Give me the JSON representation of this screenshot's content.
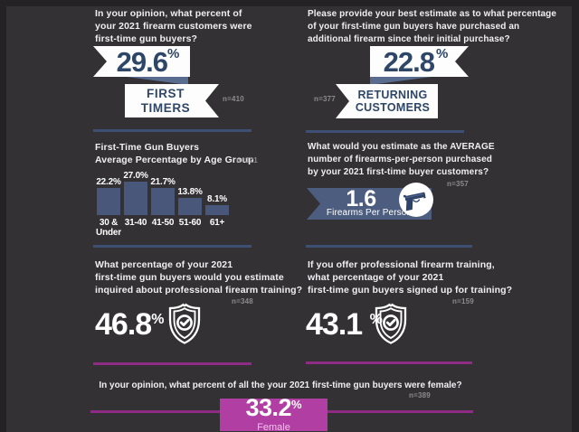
{
  "colors": {
    "background": "#333134",
    "frame": "#242225",
    "navy_text": "#2e4668",
    "steel_blue": "#4d5d7f",
    "bar_blue": "#49587a",
    "divider_navy": "#3d4f72",
    "magenta_box": "#b13ea3",
    "magenta_line": "#8e2b84",
    "sample_gray": "#8c8c8c"
  },
  "sections": {
    "first_timers": {
      "question_lines": [
        "In your opinion, what percent of",
        "your 2021 firearm customers were",
        "first-time gun buyers?"
      ],
      "value": "29.6",
      "unit": "%",
      "label_line1": "FIRST",
      "label_line2": "TIMERS",
      "n": "n=410"
    },
    "returning_customers": {
      "question_lines": [
        "Please provide your best estimate as to what percentage",
        "of your first-time gun buyers have purchased an",
        "additional firearm since their initial purchase?"
      ],
      "value": "22.8",
      "unit": "%",
      "label_line1": "RETURNING",
      "label_line2": "CUSTOMERS",
      "n": "n=377"
    },
    "age_chart": {
      "title_line1": "First-Time Gun Buyers",
      "title_line2": "Average Percentage by Age Group",
      "n": "n=321"
    },
    "firearms_per_person": {
      "question_lines": [
        "What would you estimate as the AVERAGE",
        "number of firearms-per-person purchased",
        "by your 2021 first-time buyer customers?"
      ],
      "value": "1.6",
      "caption": "Firearms Per Person",
      "n": "n=357",
      "icon": "pistol-icon"
    },
    "training_inquired": {
      "question_lines": [
        "What percentage of your 2021",
        "first-time gun buyers would you estimate",
        "inquired about professional firearm training?"
      ],
      "value": "46.8",
      "unit": "%",
      "n": "n=348",
      "icon": "shield-check-icon"
    },
    "training_signed": {
      "question_lines": [
        "If you offer professional firearm training,",
        "what percentage of your 2021",
        "first-time gun buyers signed up for training?"
      ],
      "value": "43.1",
      "unit": "%",
      "n": "n=159",
      "icon": "shield-check-icon"
    },
    "female_buyers": {
      "question": "In your opinion, what percent of all the your 2021 first-time gun buyers were female?",
      "value": "33.2",
      "unit": "%",
      "label": "Female",
      "n": "n=389"
    }
  },
  "chart_data": {
    "type": "bar",
    "title": "First-Time Gun Buyers Average Percentage by Age Group",
    "n": "n=321",
    "categories": [
      "30 & Under",
      "31-40",
      "41-50",
      "51-60",
      "61+"
    ],
    "categories_display": [
      "30 &\nUnder",
      "31-40",
      "41-50",
      "51-60",
      "61+"
    ],
    "values": [
      22.2,
      27.0,
      21.7,
      13.8,
      8.1
    ],
    "labels": [
      "22.2%",
      "27.0%",
      "21.7%",
      "13.8%",
      "8.1%"
    ],
    "xlabel": "Age Group",
    "ylabel": "Average Percentage",
    "ylim": [
      0,
      30
    ],
    "grid": false,
    "legend": false,
    "bar_color": "#49587a"
  }
}
